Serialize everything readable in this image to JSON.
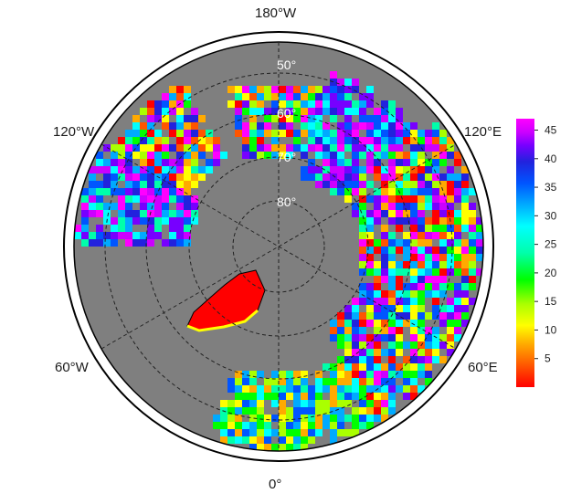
{
  "map": {
    "projection": "north-polar-stereographic",
    "land_color": "#7f7f7f",
    "border_color": "#000000",
    "gridline_style": "dashed",
    "longitude_labels": [
      {
        "id": "lon-180w",
        "text": "180°W"
      },
      {
        "id": "lon-120e",
        "text": "120°E"
      },
      {
        "id": "lon-60e",
        "text": "60°E"
      },
      {
        "id": "lon-0",
        "text": "0°"
      },
      {
        "id": "lon-60w",
        "text": "60°W"
      },
      {
        "id": "lon-120w",
        "text": "120°W"
      }
    ],
    "latitude_labels": [
      "50°",
      "60°",
      "70°",
      "80°"
    ]
  },
  "colorbar": {
    "min": 0,
    "max": 47,
    "ticks": [
      "5",
      "10",
      "15",
      "20",
      "25",
      "30",
      "35",
      "40",
      "45"
    ],
    "colors": [
      "#ff0000",
      "#ff5500",
      "#ffaa00",
      "#ffff00",
      "#aaff00",
      "#00ff00",
      "#00ffaa",
      "#00ffff",
      "#00aaff",
      "#0055ff",
      "#2222dd",
      "#7700ff",
      "#cc00ff",
      "#ff00ff"
    ]
  }
}
